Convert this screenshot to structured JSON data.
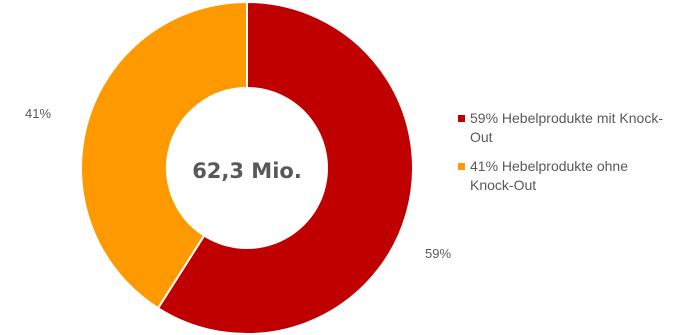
{
  "chart_data": {
    "type": "pie",
    "donut": true,
    "start_angle_deg": 0,
    "direction": "clockwise",
    "center_label": "62,3 Mio.",
    "slices": [
      {
        "name": "Hebelprodukte mit Knock-Out",
        "value": 59,
        "label": "59%",
        "legend_text": "59% Hebelprodukte mit Knock-Out",
        "color": "#C00000"
      },
      {
        "name": "Hebelprodukte ohne Knock-Out",
        "value": 41,
        "label": "41%",
        "legend_text": "41% Hebelprodukte ohne Knock-Out",
        "color": "#FF9900"
      }
    ],
    "legend_position": "right"
  }
}
